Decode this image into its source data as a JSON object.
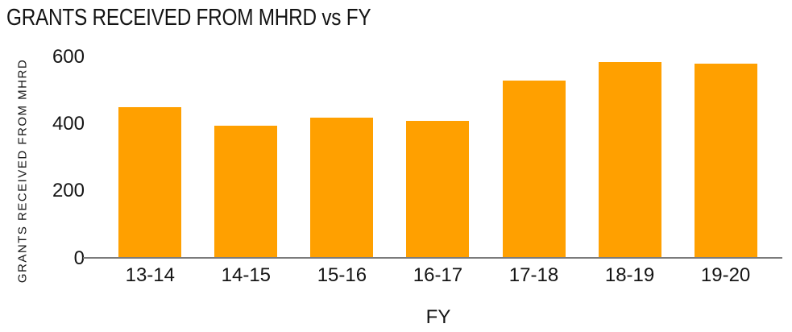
{
  "chart_data": {
    "type": "bar",
    "title": "GRANTS RECEIVED FROM MHRD vs FY",
    "xlabel": "FY",
    "ylabel": "GRANTS RECEIVED FROM MHRD",
    "categories": [
      "13-14",
      "14-15",
      "15-16",
      "16-17",
      "17-18",
      "18-19",
      "19-20"
    ],
    "values": [
      450,
      395,
      420,
      410,
      530,
      585,
      580
    ],
    "yticks": [
      0,
      200,
      400,
      600
    ],
    "ylim": [
      0,
      600
    ],
    "grid": false,
    "legend": "none",
    "bar_color": "#FFA000",
    "axis_color": "#7b7b7b",
    "text_color": "#141414"
  }
}
